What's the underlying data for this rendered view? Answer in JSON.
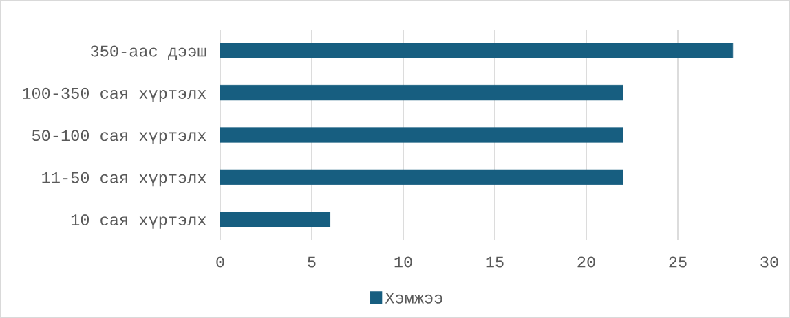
{
  "chart_data": {
    "type": "bar",
    "orientation": "horizontal",
    "categories": [
      "350-аас дээш",
      "100-350 сая хүртэлх",
      "50-100 сая хүртэлх",
      "11-50 сая хүртэлх",
      "10 сая хүртэлх"
    ],
    "series": [
      {
        "name": "Хэмжээ",
        "color": "#175e80",
        "values": [
          28,
          22,
          22,
          22,
          6
        ]
      }
    ],
    "xlim": [
      0,
      30
    ],
    "xticks": [
      0,
      5,
      10,
      15,
      20,
      25,
      30
    ],
    "grid": "x",
    "legend": "bottom"
  }
}
